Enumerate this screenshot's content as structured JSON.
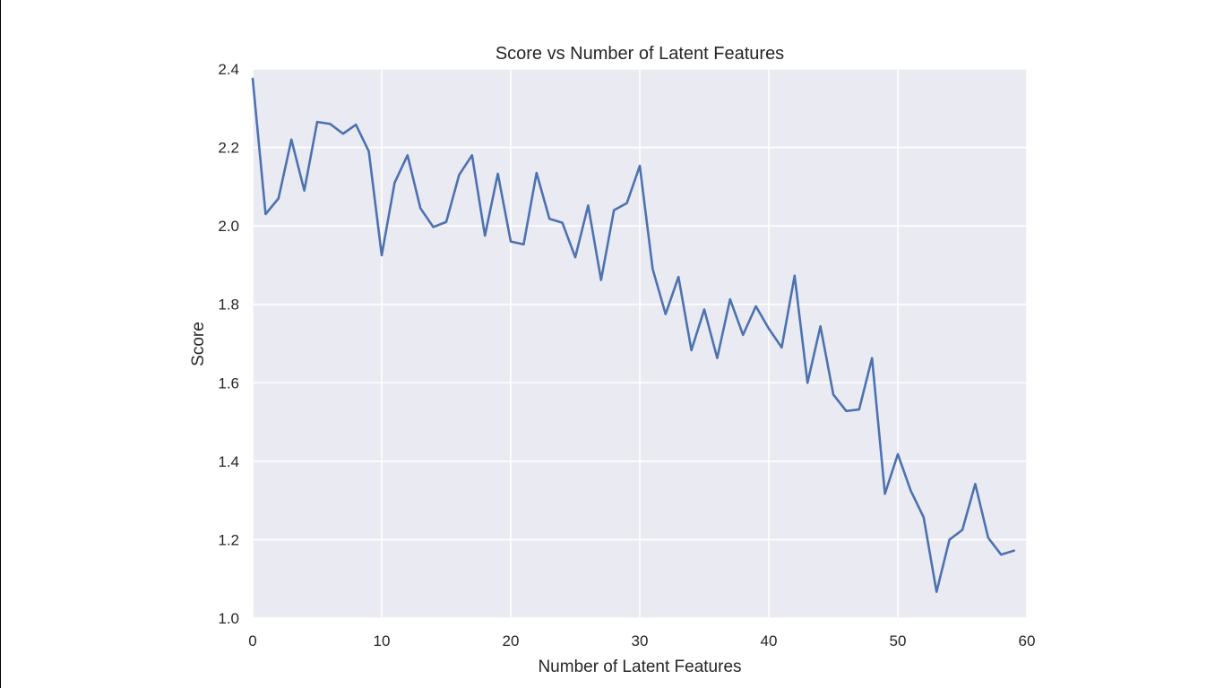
{
  "chart_data": {
    "type": "line",
    "title": "Score vs Number of Latent Features",
    "xlabel": "Number of Latent Features",
    "ylabel": "Score",
    "xlim": [
      0,
      60
    ],
    "ylim": [
      1.0,
      2.4
    ],
    "xticks": [
      0,
      10,
      20,
      30,
      40,
      50,
      60
    ],
    "yticks": [
      1.0,
      1.2,
      1.4,
      1.6,
      1.8,
      2.0,
      2.2,
      2.4
    ],
    "xtick_labels": [
      "0",
      "10",
      "20",
      "30",
      "40",
      "50",
      "60"
    ],
    "ytick_labels": [
      "1.0",
      "1.2",
      "1.4",
      "1.6",
      "1.8",
      "2.0",
      "2.2",
      "2.4"
    ],
    "grid": true,
    "legend": "none",
    "colors": {
      "line": "#4c72b0",
      "plot_background": "#eaeaf2",
      "grid": "#ffffff"
    },
    "series": [
      {
        "x": [
          0,
          1,
          2,
          3,
          4,
          5,
          6,
          7,
          8,
          9,
          10,
          11,
          12,
          13,
          14,
          15,
          16,
          17,
          18,
          19,
          20,
          21,
          22,
          23,
          24,
          25,
          26,
          27,
          28,
          29,
          30,
          31,
          32,
          33,
          34,
          35,
          36,
          37,
          38,
          39,
          40,
          41,
          42,
          43,
          44,
          45,
          46,
          47,
          48,
          49,
          50,
          51,
          52,
          53,
          54,
          55,
          56,
          57,
          58,
          59
        ],
        "values": [
          2.375,
          2.03,
          2.07,
          2.22,
          2.09,
          2.265,
          2.26,
          2.235,
          2.258,
          2.19,
          1.925,
          2.11,
          2.18,
          2.045,
          1.997,
          2.01,
          2.13,
          2.18,
          1.975,
          2.133,
          1.96,
          1.953,
          2.135,
          2.018,
          2.008,
          1.92,
          2.052,
          1.862,
          2.04,
          2.058,
          2.153,
          1.89,
          1.775,
          1.87,
          1.683,
          1.787,
          1.663,
          1.813,
          1.722,
          1.795,
          1.738,
          1.69,
          1.873,
          1.6,
          1.744,
          1.57,
          1.528,
          1.532,
          1.663,
          1.317,
          1.418,
          1.325,
          1.257,
          1.067,
          1.2,
          1.225,
          1.342,
          1.205,
          1.162,
          1.172
        ]
      }
    ]
  }
}
